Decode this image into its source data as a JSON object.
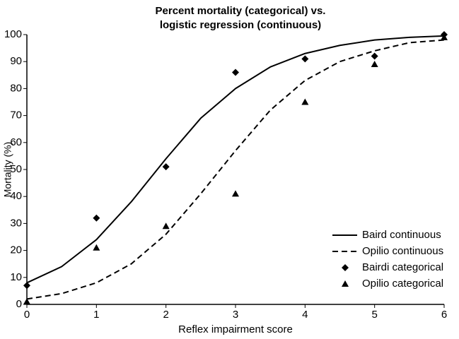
{
  "chart_data": {
    "type": "line",
    "title": [
      "Percent mortality (categorical) vs.",
      "logistic regression (continuous)"
    ],
    "x_label": "Reflex impairment score",
    "y_label": "Mortality (%)",
    "xlim": [
      0,
      6
    ],
    "xticks": [
      0,
      1,
      2,
      3,
      4,
      5,
      6
    ],
    "ylim": [
      0,
      100
    ],
    "yticks": [
      0,
      10,
      20,
      30,
      40,
      50,
      60,
      70,
      80,
      90,
      100
    ],
    "grid": false,
    "legend": "lower right",
    "series": [
      {
        "name": "Baird continuous",
        "color": "#000000",
        "style": "solid",
        "x": [
          0,
          0.5,
          1,
          1.5,
          2,
          2.5,
          3,
          3.5,
          4,
          4.5,
          5,
          5.5,
          6
        ],
        "values": [
          8,
          14,
          24,
          38,
          54,
          69,
          80,
          88,
          93,
          96,
          98,
          99,
          99.5
        ]
      },
      {
        "name": "Opilio continuous",
        "color": "#000000",
        "style": "dashed",
        "x": [
          0,
          0.5,
          1,
          1.5,
          2,
          2.5,
          3,
          3.5,
          4,
          4.5,
          5,
          5.5,
          6
        ],
        "values": [
          2,
          4,
          8,
          15,
          26,
          41,
          57,
          72,
          83,
          90,
          94,
          97,
          98
        ]
      },
      {
        "name": "Bairdi categorical",
        "color": "#000000",
        "style": "marker",
        "marker": "diamond",
        "x": [
          0,
          1,
          2,
          3,
          4,
          5,
          6
        ],
        "values": [
          7,
          32,
          51,
          86,
          91,
          92,
          100
        ]
      },
      {
        "name": "Opilio categorical",
        "color": "#000000",
        "style": "marker",
        "marker": "triangle",
        "x": [
          0,
          1,
          2,
          3,
          4,
          5,
          6
        ],
        "values": [
          1,
          21,
          29,
          41,
          75,
          89,
          99
        ]
      }
    ]
  }
}
